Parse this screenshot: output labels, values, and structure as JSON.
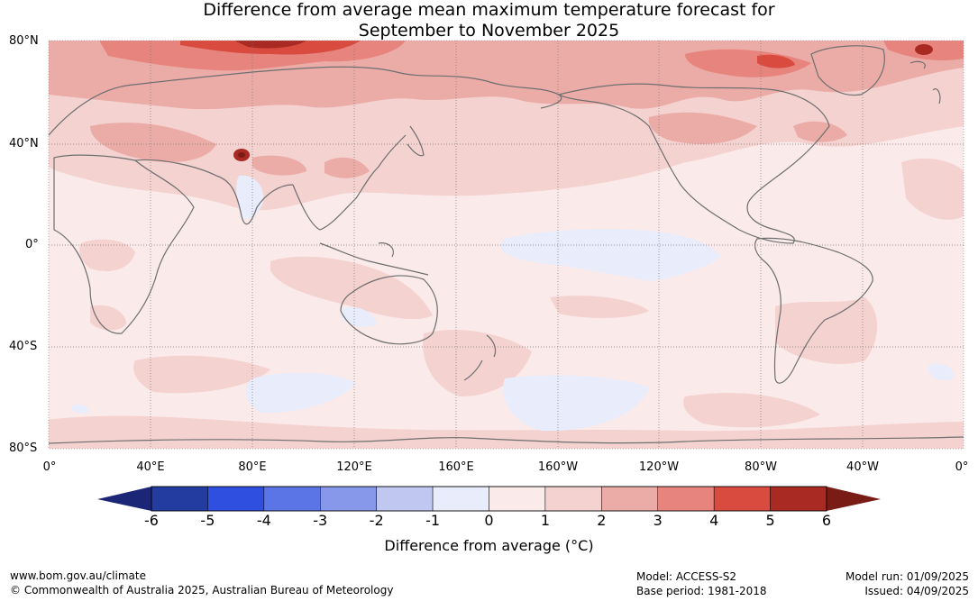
{
  "title": {
    "line1": "Difference from average mean maximum temperature forecast for",
    "line2": "September to November 2025"
  },
  "map": {
    "lat_labels": [
      "80°N",
      "40°N",
      "0°",
      "40°S",
      "80°S"
    ],
    "lon_labels": [
      "0°",
      "40°E",
      "80°E",
      "120°E",
      "160°E",
      "160°W",
      "120°W",
      "80°W",
      "40°W",
      "0°"
    ],
    "background_anomaly_color": "#fbeaea",
    "coastline_color": "#6e6e6e"
  },
  "colorbar": {
    "ticks": [
      "-6",
      "-5",
      "-4",
      "-3",
      "-2",
      "-1",
      "0",
      "1",
      "2",
      "3",
      "4",
      "5",
      "6"
    ],
    "colors": [
      "#233c9f",
      "#2e4fe0",
      "#5b74e6",
      "#8797ea",
      "#c0c8f2",
      "#e8ecfb",
      "#fbeaea",
      "#f4d2d0",
      "#ebaca8",
      "#e6847d",
      "#d94b3f",
      "#a82a22"
    ],
    "under_color": "#1b2677",
    "over_color": "#7a1c16",
    "label": "Difference from average (°C)"
  },
  "footer": {
    "website": "www.bom.gov.au/climate",
    "copyright": "© Commonwealth of Australia 2025, Australian Bureau of Meteorology",
    "model": "Model: ACCESS-S2",
    "base_period": "Base period: 1981-2018",
    "model_run": "Model run: 01/09/2025",
    "issued": "Issued: 04/09/2025"
  }
}
